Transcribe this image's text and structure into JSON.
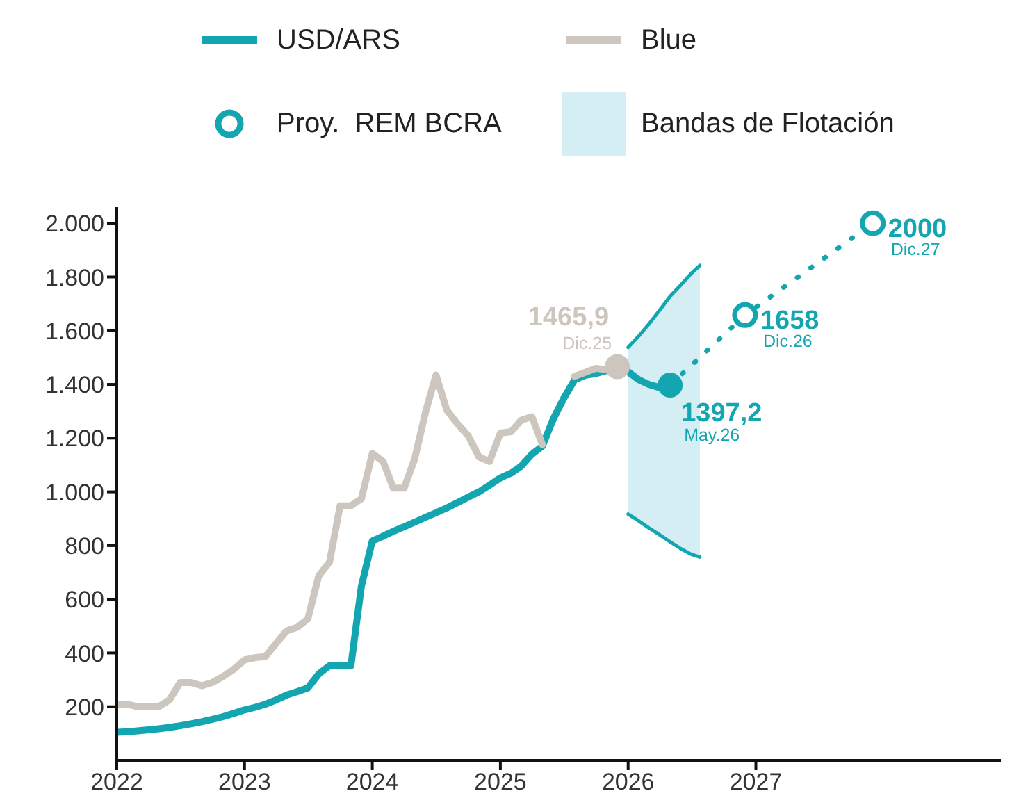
{
  "chart_data": {
    "type": "line",
    "series": [
      {
        "name": "USD/ARS",
        "color": "#14a6b0",
        "x": [
          "2022-01",
          "2022-02",
          "2022-03",
          "2022-04",
          "2022-05",
          "2022-06",
          "2022-07",
          "2022-08",
          "2022-09",
          "2022-10",
          "2022-11",
          "2022-12",
          "2023-01",
          "2023-02",
          "2023-03",
          "2023-04",
          "2023-05",
          "2023-06",
          "2023-07",
          "2023-08",
          "2023-09",
          "2023-10",
          "2023-11",
          "2023-12",
          "2024-01",
          "2024-02",
          "2024-03",
          "2024-04",
          "2024-05",
          "2024-06",
          "2024-07",
          "2024-08",
          "2024-09",
          "2024-10",
          "2024-11",
          "2024-12",
          "2025-01",
          "2025-02",
          "2025-03",
          "2025-04",
          "2025-05",
          "2025-06",
          "2025-07",
          "2025-08",
          "2025-09",
          "2025-10",
          "2025-11",
          "2025-12",
          "2026-01",
          "2026-02",
          "2026-03",
          "2026-04",
          "2026-05"
        ],
        "values": [
          105,
          107,
          110,
          114,
          118,
          123,
          129,
          136,
          144,
          153,
          163,
          175,
          188,
          198,
          209,
          225,
          243,
          256,
          270,
          322,
          353,
          353,
          353,
          650,
          817,
          835,
          853,
          870,
          887,
          905,
          922,
          940,
          960,
          980,
          1000,
          1025,
          1052,
          1070,
          1095,
          1140,
          1170,
          1271,
          1348,
          1417,
          1434,
          1440,
          1452,
          null,
          1447,
          1417,
          1400,
          1388,
          1397.2
        ]
      },
      {
        "name": "Blue",
        "color": "#cdc6bf",
        "x": [
          "2022-01",
          "2022-02",
          "2022-03",
          "2022-04",
          "2022-05",
          "2022-06",
          "2022-07",
          "2022-08",
          "2022-09",
          "2022-10",
          "2022-11",
          "2022-12",
          "2023-01",
          "2023-02",
          "2023-03",
          "2023-04",
          "2023-05",
          "2023-06",
          "2023-07",
          "2023-08",
          "2023-09",
          "2023-10",
          "2023-11",
          "2023-12",
          "2024-01",
          "2024-02",
          "2024-03",
          "2024-04",
          "2024-05",
          "2024-06",
          "2024-07",
          "2024-08",
          "2024-09",
          "2024-10",
          "2024-11",
          "2024-12",
          "2025-01",
          "2025-02",
          "2025-03",
          "2025-04",
          "2025-05",
          "2025-06",
          "2025-07",
          "2025-08",
          "2025-09",
          "2025-10",
          "2025-11",
          "2025-12"
        ],
        "values": [
          209,
          209,
          200,
          200,
          200,
          226,
          290,
          290,
          278,
          290,
          313,
          339,
          374,
          383,
          386,
          435,
          482,
          496,
          527,
          687,
          739,
          948,
          948,
          974,
          1143,
          1113,
          1014,
          1014,
          1122,
          1296,
          1435,
          1304,
          1252,
          1209,
          1130,
          1113,
          1219,
          1224,
          1266,
          1280,
          1176,
          null,
          null,
          1430,
          1445,
          1460,
          1455,
          1465.9
        ]
      },
      {
        "name": "Proy.  REM BCRA",
        "type": "scatter",
        "color": "#14a6b0",
        "marker": "circle",
        "x": [
          "2026-12",
          "2027-12"
        ],
        "values": [
          1658,
          2000
        ]
      },
      {
        "name": "Bandas de Flotación",
        "type": "area",
        "color": "#d5eef3",
        "x": [
          "2026-01",
          "2026-02",
          "2026-03",
          "2026-04",
          "2026-05",
          "2026-06",
          "2026-07",
          "2026-07-25"
        ],
        "values": [
          null,
          null,
          null,
          null,
          null,
          null,
          null,
          null
        ],
        "lower": [
          917,
          891,
          866,
          840,
          814,
          788,
          767,
          757
        ],
        "upper": [
          1538,
          1581,
          1624,
          1676,
          1728,
          1771,
          1814,
          1843
        ]
      },
      {
        "color": "#14a6b0",
        "line_style": "solid",
        "x": [
          "2026-01",
          "2026-02",
          "2026-03",
          "2026-04",
          "2026-05",
          "2026-06",
          "2026-07",
          "2026-07-25"
        ],
        "values": [
          1538,
          1581,
          1624,
          1676,
          1728,
          1771,
          1814,
          1843
        ]
      },
      {
        "color": "#14a6b0",
        "line_style": "solid",
        "x": [
          "2026-01",
          "2026-02",
          "2026-03",
          "2026-04",
          "2026-05",
          "2026-06",
          "2026-07",
          "2026-07-25"
        ],
        "values": [
          917,
          891,
          866,
          840,
          814,
          788,
          767,
          757
        ]
      },
      {
        "color": "#14a6b0",
        "line_style": "dotted",
        "x": [
          "2026-05",
          "2026-12",
          "2027-12"
        ],
        "values": [
          1397.2,
          1658,
          2000
        ]
      }
    ],
    "xlim": [
      "2022-01",
      "2028-12"
    ],
    "xticks": [
      "2022",
      "2023",
      "2024",
      "2025",
      "2026",
      "2027"
    ],
    "ylim": [
      0,
      2060
    ],
    "yticks": [
      200,
      400,
      600,
      800,
      {
        "value": 1000,
        "label": "1.000"
      },
      {
        "value": 1200,
        "label": "1.200"
      },
      {
        "value": 1400,
        "label": "1.400"
      },
      {
        "value": 1600,
        "label": "1.600"
      },
      {
        "value": 1800,
        "label": "1.800"
      },
      {
        "value": 2000,
        "label": "2.000"
      }
    ],
    "annotations": [
      {
        "text": "1465,9",
        "x": "2025-12",
        "y": 1465.9
      },
      {
        "text": "Dic.25",
        "x": "2025-12",
        "y": 1465.9
      },
      {
        "text": "1397,2",
        "x": "2026-05",
        "y": 1397.2
      },
      {
        "text": "May.26",
        "x": "2026-05",
        "y": 1397.2
      },
      {
        "text": "1658",
        "x": "2026-12",
        "y": 1658
      },
      {
        "text": "Dic.26",
        "x": "2026-12",
        "y": 1658
      },
      {
        "text": "2000",
        "x": "2027-12",
        "y": 2000
      },
      {
        "text": "Dic.27",
        "x": "2027-12",
        "y": 2000
      }
    ],
    "grid": false,
    "legend": "top"
  }
}
